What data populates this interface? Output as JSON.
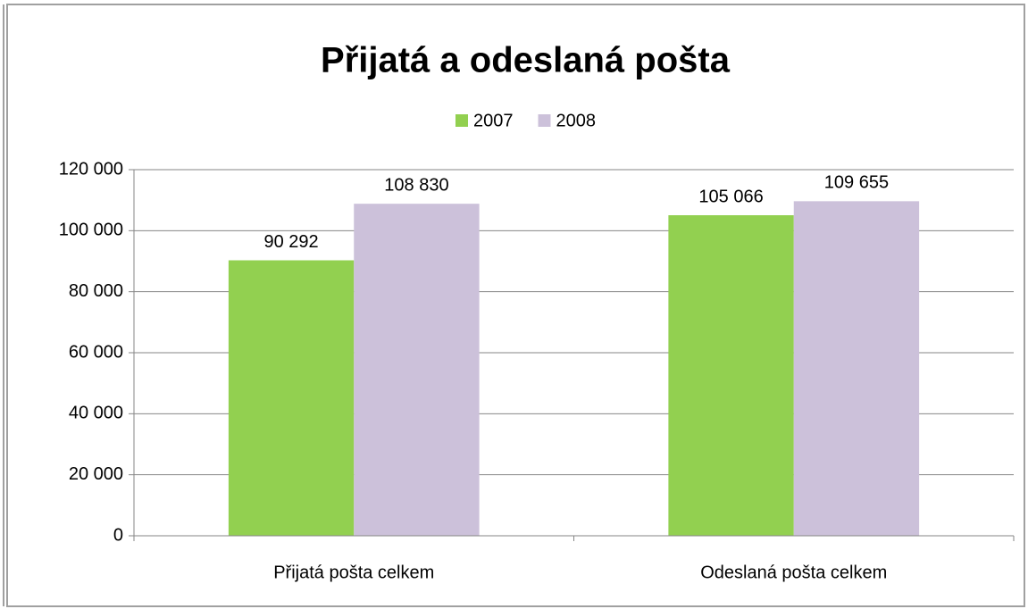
{
  "chart_data": {
    "type": "bar",
    "title": "Přijatá a odeslaná pošta",
    "categories": [
      "Přijatá pošta celkem",
      "Odeslaná pošta celkem"
    ],
    "series": [
      {
        "name": "2007",
        "color": "#92d050",
        "values": [
          90292,
          105066
        ],
        "value_labels": [
          "90 292",
          "105 066"
        ]
      },
      {
        "name": "2008",
        "color": "#ccc1da",
        "values": [
          108830,
          109655
        ],
        "value_labels": [
          "108 830",
          "109 655"
        ]
      }
    ],
    "ylim": [
      0,
      120000
    ],
    "yticks": [
      0,
      {
        "value": 20000,
        "label": "20 000"
      },
      {
        "value": 40000,
        "label": "40 000"
      },
      {
        "value": 60000,
        "label": "60 000"
      },
      {
        "value": 80000,
        "label": "80 000"
      },
      {
        "value": 100000,
        "label": "100 000"
      },
      {
        "value": 120000,
        "label": "120 000"
      }
    ],
    "grid": true,
    "legend": "top"
  }
}
